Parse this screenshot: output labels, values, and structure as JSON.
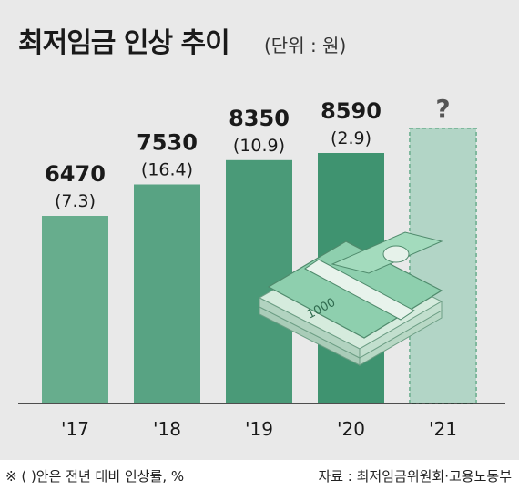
{
  "chart_data": {
    "type": "bar",
    "title": "최저임금 인상 추이",
    "unit_label": "(단위 : 원)",
    "categories": [
      "'17",
      "'18",
      "'19",
      "'20",
      "'21"
    ],
    "values": [
      6470,
      7530,
      8350,
      8590,
      null
    ],
    "value_labels": [
      "6470",
      "7530",
      "8350",
      "8590",
      "?"
    ],
    "rate_labels": [
      "(7.3)",
      "(16.4)",
      "(10.9)",
      "(2.9)",
      ""
    ],
    "ylim": [
      0,
      10000
    ],
    "grid": false,
    "colors": {
      "bars": [
        "#67ad8d",
        "#58a383",
        "#4a9a78",
        "#3f9370"
      ],
      "pending_fill": "#b2d5c6",
      "pending_stroke": "#7fb89d",
      "money": "#8ecfae"
    },
    "illustration": {
      "icon": "banknote-stack-icon",
      "note_label": "1000"
    }
  },
  "footer": {
    "note": "※ ( )안은 전년 대비 인상률, %",
    "source": "자료 : 최저임금위원회·고용노동부"
  }
}
